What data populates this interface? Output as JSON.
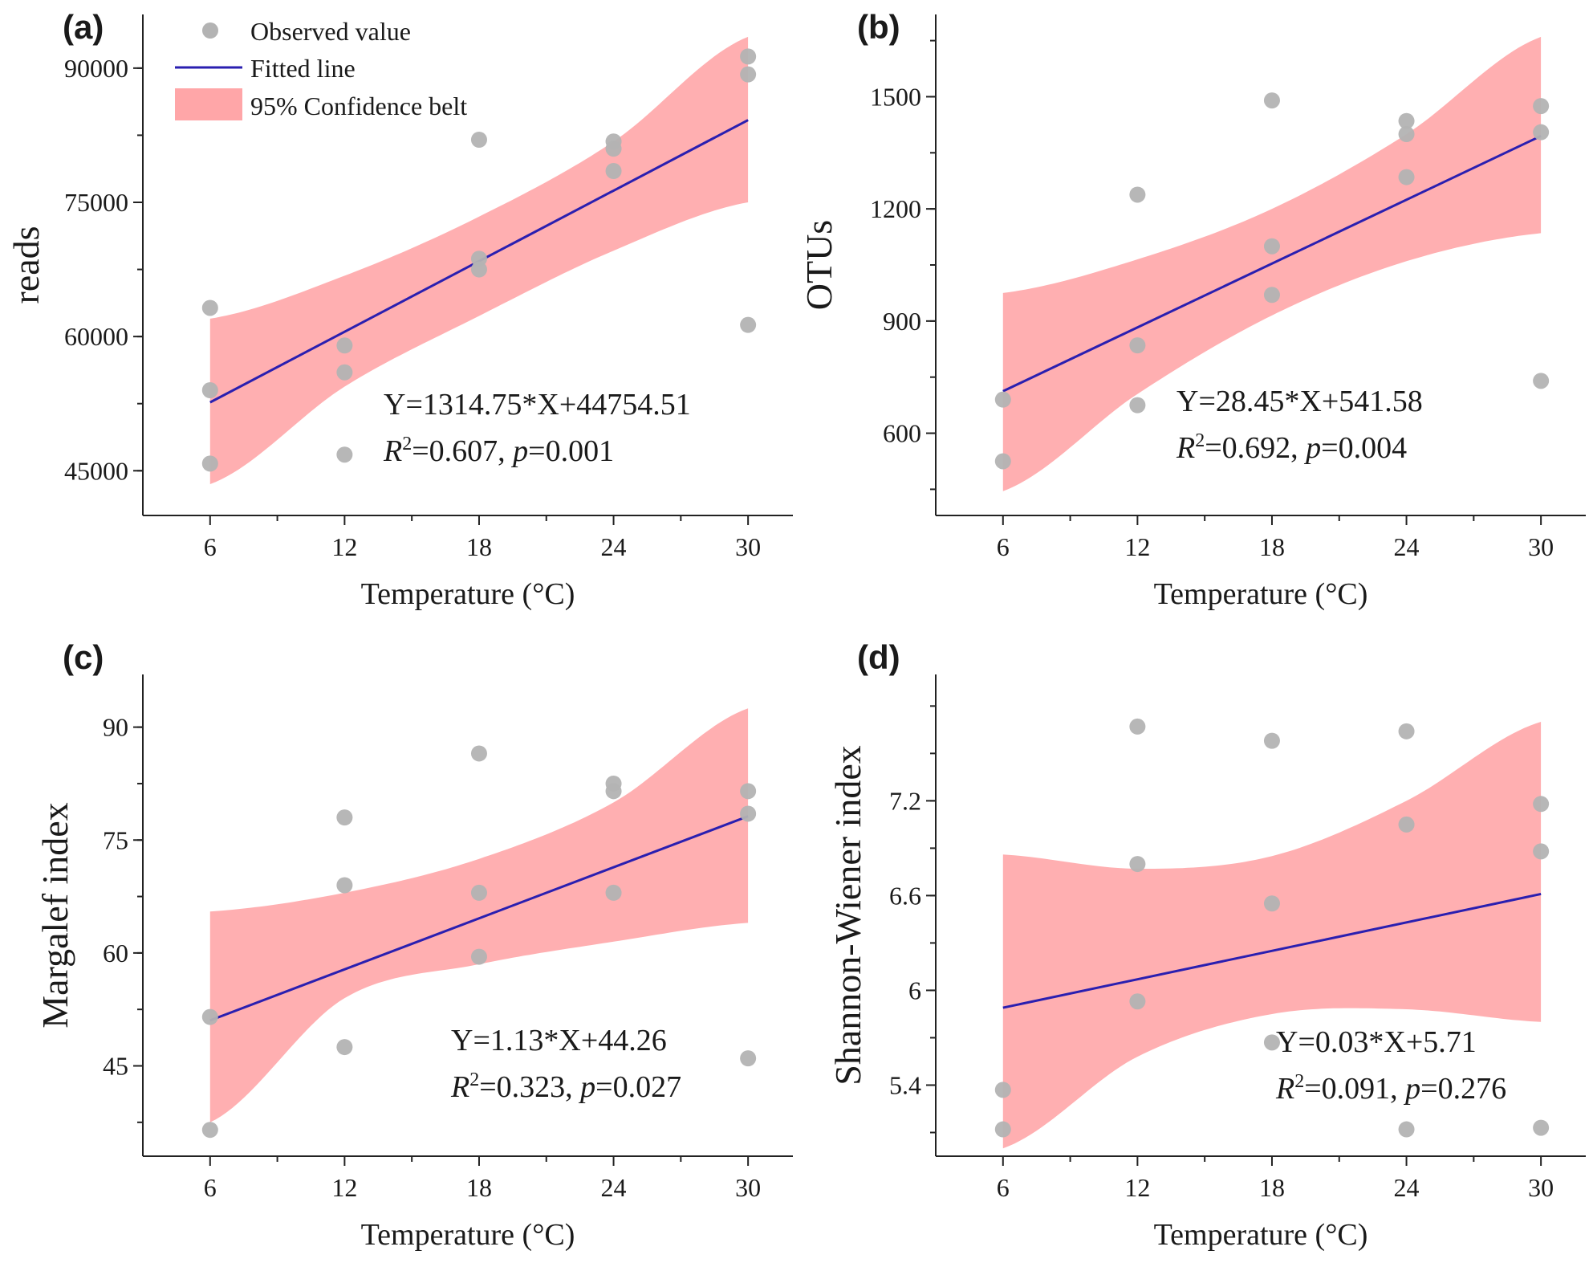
{
  "colors": {
    "point": "#b3b3b3",
    "line": "#2a1fb0",
    "band": "#ffa6a8",
    "axis": "#222222"
  },
  "legend": {
    "observed": "Observed value",
    "fitted": "Fitted line",
    "band": "95% Confidence belt"
  },
  "chart_data": [
    {
      "panel": "(a)",
      "type": "scatter",
      "xlabel": "Temperature (°C)",
      "ylabel": "reads",
      "xlim": [
        3,
        32
      ],
      "ylim": [
        40000,
        96000
      ],
      "xticks": [
        6,
        12,
        18,
        24,
        30
      ],
      "yticks": [
        45000,
        60000,
        75000,
        90000
      ],
      "points": [
        [
          6,
          63200
        ],
        [
          6,
          54000
        ],
        [
          6,
          45800
        ],
        [
          12,
          59000
        ],
        [
          12,
          56000
        ],
        [
          12,
          46800
        ],
        [
          18,
          82000
        ],
        [
          18,
          68700
        ],
        [
          18,
          67500
        ],
        [
          24,
          81800
        ],
        [
          24,
          81000
        ],
        [
          24,
          78500
        ],
        [
          30,
          91300
        ],
        [
          30,
          89300
        ],
        [
          30,
          61300
        ]
      ],
      "fit": {
        "slope": 1314.75,
        "intercept": 44754.51
      },
      "ci_x": [
        6,
        12,
        18,
        24,
        30
      ],
      "ci_upper": [
        62000,
        66800,
        73400,
        81800,
        93500
      ],
      "ci_lower": [
        43500,
        54400,
        62300,
        69600,
        75000
      ],
      "equation": "Y=1314.75*X+44754.51",
      "r2": "=0.607",
      "p": "=0.001"
    },
    {
      "panel": "(b)",
      "type": "scatter",
      "xlabel": "Temperature (°C)",
      "ylabel": "OTUs",
      "xlim": [
        3,
        32
      ],
      "ylim": [
        380,
        1720
      ],
      "xticks": [
        6,
        12,
        18,
        24,
        30
      ],
      "yticks": [
        600,
        900,
        1200,
        1500
      ],
      "points": [
        [
          6,
          690
        ],
        [
          6,
          525
        ],
        [
          12,
          1238
        ],
        [
          12,
          835
        ],
        [
          12,
          675
        ],
        [
          18,
          1490
        ],
        [
          18,
          1100
        ],
        [
          18,
          970
        ],
        [
          24,
          1435
        ],
        [
          24,
          1400
        ],
        [
          24,
          1285
        ],
        [
          30,
          1475
        ],
        [
          30,
          1405
        ],
        [
          30,
          740
        ]
      ],
      "fit": {
        "slope": 28.45,
        "intercept": 541.58
      },
      "ci_x": [
        6,
        12,
        18,
        24,
        30
      ],
      "ci_upper": [
        975,
        1065,
        1200,
        1400,
        1660
      ],
      "ci_lower": [
        445,
        705,
        915,
        1060,
        1135
      ],
      "equation": "Y=28.45*X+541.58",
      "r2": "=0.692",
      "p": "=0.004"
    },
    {
      "panel": "(c)",
      "type": "scatter",
      "xlabel": "Temperature (°C)",
      "ylabel": "Margalef index",
      "xlim": [
        3,
        32
      ],
      "ylim": [
        33,
        97
      ],
      "xticks": [
        6,
        12,
        18,
        24,
        30
      ],
      "yticks": [
        45,
        60,
        75,
        90
      ],
      "points": [
        [
          6,
          51.5
        ],
        [
          6,
          36.5
        ],
        [
          12,
          78
        ],
        [
          12,
          69
        ],
        [
          12,
          47.5
        ],
        [
          18,
          86.5
        ],
        [
          18,
          68
        ],
        [
          18,
          59.5
        ],
        [
          24,
          82.5
        ],
        [
          24,
          81.5
        ],
        [
          24,
          68
        ],
        [
          30,
          81.5
        ],
        [
          30,
          78.5
        ],
        [
          30,
          46
        ]
      ],
      "fit": {
        "slope": 1.13,
        "intercept": 44.26
      },
      "ci_x": [
        6,
        12,
        18,
        24,
        30
      ],
      "ci_upper": [
        65.5,
        68,
        72.5,
        80,
        92.5
      ],
      "ci_lower": [
        37.5,
        54,
        58.5,
        61.5,
        64
      ],
      "equation": "Y=1.13*X+44.26",
      "r2": "=0.323",
      "p": "=0.027"
    },
    {
      "panel": "(d)",
      "type": "scatter",
      "xlabel": "Temperature (°C)",
      "ylabel": "Shannon-Wiener index",
      "xlim": [
        3,
        32
      ],
      "ylim": [
        4.95,
        8.0
      ],
      "xticks": [
        6,
        12,
        18,
        24,
        30
      ],
      "yticks": [
        5.4,
        6.0,
        6.6,
        7.2
      ],
      "points": [
        [
          6,
          5.37
        ],
        [
          6,
          5.12
        ],
        [
          12,
          7.67
        ],
        [
          12,
          6.8
        ],
        [
          12,
          5.93
        ],
        [
          18,
          7.58
        ],
        [
          18,
          6.55
        ],
        [
          18,
          5.67
        ],
        [
          24,
          7.64
        ],
        [
          24,
          7.05
        ],
        [
          24,
          5.12
        ],
        [
          30,
          7.18
        ],
        [
          30,
          6.88
        ],
        [
          30,
          5.13
        ]
      ],
      "fit": {
        "slope": 0.03,
        "intercept": 5.71
      },
      "ci_x": [
        6,
        12,
        18,
        24,
        30
      ],
      "ci_upper": [
        6.86,
        6.77,
        6.85,
        7.2,
        7.7
      ],
      "ci_lower": [
        5.0,
        5.58,
        5.85,
        5.88,
        5.8
      ],
      "equation": "Y=0.03*X+5.71",
      "r2": "=0.091",
      "p": "=0.276"
    }
  ]
}
